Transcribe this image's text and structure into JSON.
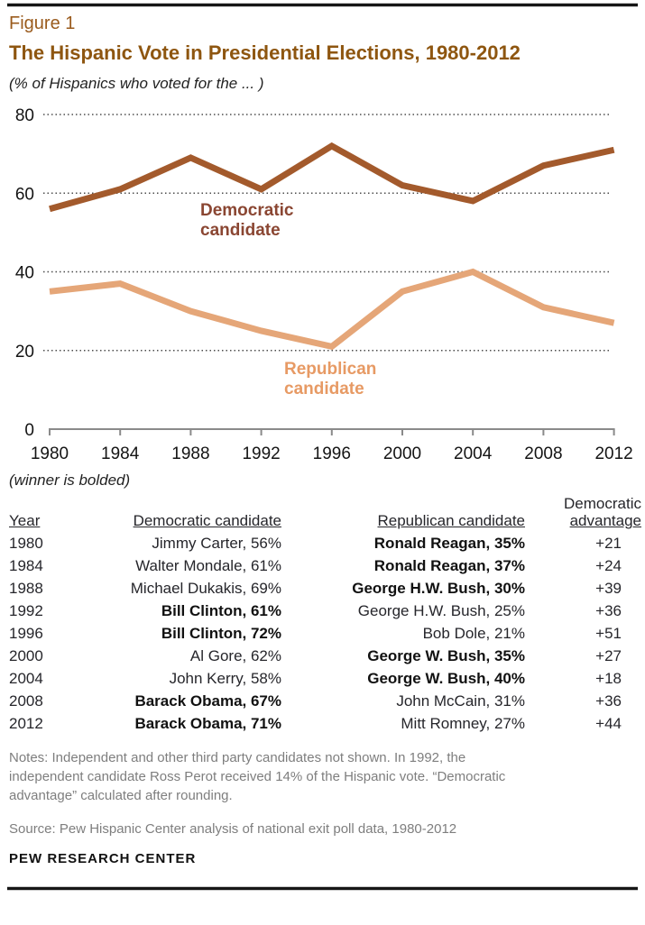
{
  "figure_label": "Figure 1",
  "title": "The Hispanic Vote in Presidential Elections, 1980-2012",
  "subtitle": "(% of Hispanics who voted for the ... )",
  "chart_data": {
    "type": "line",
    "x": [
      1980,
      1984,
      1988,
      1992,
      1996,
      2000,
      2004,
      2008,
      2012
    ],
    "series": [
      {
        "name": "Democratic candidate",
        "label_line1": "Democratic",
        "label_line2": "candidate",
        "values": [
          56,
          61,
          69,
          61,
          72,
          62,
          58,
          67,
          71
        ],
        "line_color": "#a35a2c",
        "label_color": "#8a4632"
      },
      {
        "name": "Republican candidate",
        "label_line1": "Republican",
        "label_line2": "candidate",
        "values": [
          35,
          37,
          30,
          25,
          21,
          35,
          40,
          31,
          27
        ],
        "line_color": "#e5a678",
        "label_color": "#e79a64"
      }
    ],
    "ylim": [
      0,
      80
    ],
    "yticks": [
      0,
      20,
      40,
      60,
      80
    ],
    "grid": "horizontal-dotted",
    "legend_position": "inline-labels"
  },
  "winner_note": "(winner is bolded)",
  "table": {
    "headers": {
      "year": "Year",
      "dem": "Democratic candidate",
      "rep": "Republican candidate",
      "adv_line1": "Democratic",
      "adv_line2": "advantage"
    },
    "rows": [
      {
        "year": "1980",
        "dem": "Jimmy Carter, 56%",
        "dem_bold": false,
        "rep": "Ronald Reagan, 35%",
        "rep_bold": true,
        "adv": "+21"
      },
      {
        "year": "1984",
        "dem": "Walter Mondale, 61%",
        "dem_bold": false,
        "rep": "Ronald Reagan, 37%",
        "rep_bold": true,
        "adv": "+24"
      },
      {
        "year": "1988",
        "dem": "Michael Dukakis, 69%",
        "dem_bold": false,
        "rep": "George H.W. Bush, 30%",
        "rep_bold": true,
        "adv": "+39"
      },
      {
        "year": "1992",
        "dem": "Bill Clinton, 61%",
        "dem_bold": true,
        "rep": "George H.W. Bush, 25%",
        "rep_bold": false,
        "adv": "+36"
      },
      {
        "year": "1996",
        "dem": "Bill Clinton, 72%",
        "dem_bold": true,
        "rep": "Bob Dole, 21%",
        "rep_bold": false,
        "adv": "+51"
      },
      {
        "year": "2000",
        "dem": "Al Gore, 62%",
        "dem_bold": false,
        "rep": "George W. Bush, 35%",
        "rep_bold": true,
        "adv": "+27"
      },
      {
        "year": "2004",
        "dem": "John Kerry, 58%",
        "dem_bold": false,
        "rep": "George W. Bush, 40%",
        "rep_bold": true,
        "adv": "+18"
      },
      {
        "year": "2008",
        "dem": "Barack Obama, 67%",
        "dem_bold": true,
        "rep": "John McCain, 31%",
        "rep_bold": false,
        "adv": "+36"
      },
      {
        "year": "2012",
        "dem": "Barack Obama, 71%",
        "dem_bold": true,
        "rep": "Mitt Romney, 27%",
        "rep_bold": false,
        "adv": "+44"
      }
    ]
  },
  "notes": "Notes: Independent and other third party candidates not shown. In 1992, the independent candidate Ross Perot received 14% of the Hispanic vote. “Democratic advantage” calculated after rounding.",
  "source": "Source: Pew Hispanic Center analysis of national exit poll data, 1980-2012",
  "branding": "PEW RESEARCH CENTER",
  "colors": {
    "title": "#8e5610",
    "figure_label": "#9a5b1d",
    "dem_line": "#a35a2c",
    "dem_label": "#8a4632",
    "rep_line": "#e5a678",
    "rep_label": "#e79a64",
    "grid": "#4d4d4d",
    "axis": "#8a8a8a",
    "notes_text": "#7e7e7e"
  }
}
